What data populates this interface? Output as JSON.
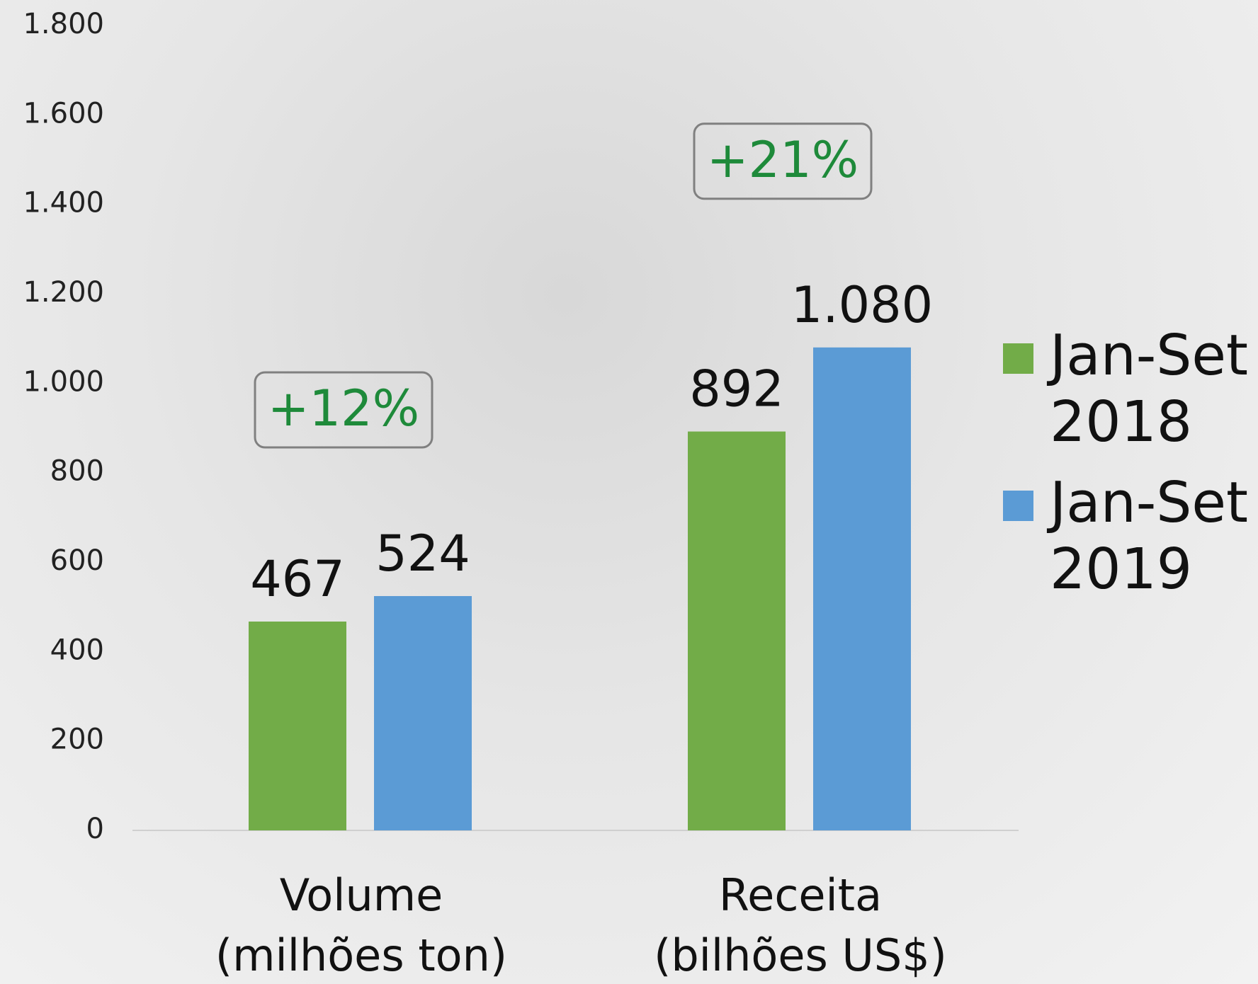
{
  "chart_data": {
    "type": "bar",
    "categories": [
      [
        "Volume",
        "(milhões ton)"
      ],
      [
        "Receita",
        "(bilhões US$)"
      ]
    ],
    "series": [
      {
        "name": "Jan-Set 2018",
        "color": "#72ac48",
        "values": [
          467,
          892
        ],
        "value_labels": [
          "467",
          "892"
        ]
      },
      {
        "name": "Jan-Set 2019",
        "color": "#5b9bd5",
        "values": [
          524,
          1080
        ],
        "value_labels": [
          "524",
          "1.080"
        ]
      }
    ],
    "annotations": [
      {
        "text": "+12%",
        "category": 0
      },
      {
        "text": "+21%",
        "category": 1
      }
    ],
    "ylim": [
      0,
      1800
    ],
    "yticks": [
      0,
      200,
      400,
      600,
      800,
      {
        "value": 1000,
        "label": "1.000"
      },
      {
        "value": 1200,
        "label": "1.200"
      },
      {
        "value": 1400,
        "label": "1.400"
      },
      {
        "value": 1600,
        "label": "1.600"
      },
      {
        "value": 1800,
        "label": "1.800"
      }
    ],
    "grid": false,
    "legend": "right"
  }
}
